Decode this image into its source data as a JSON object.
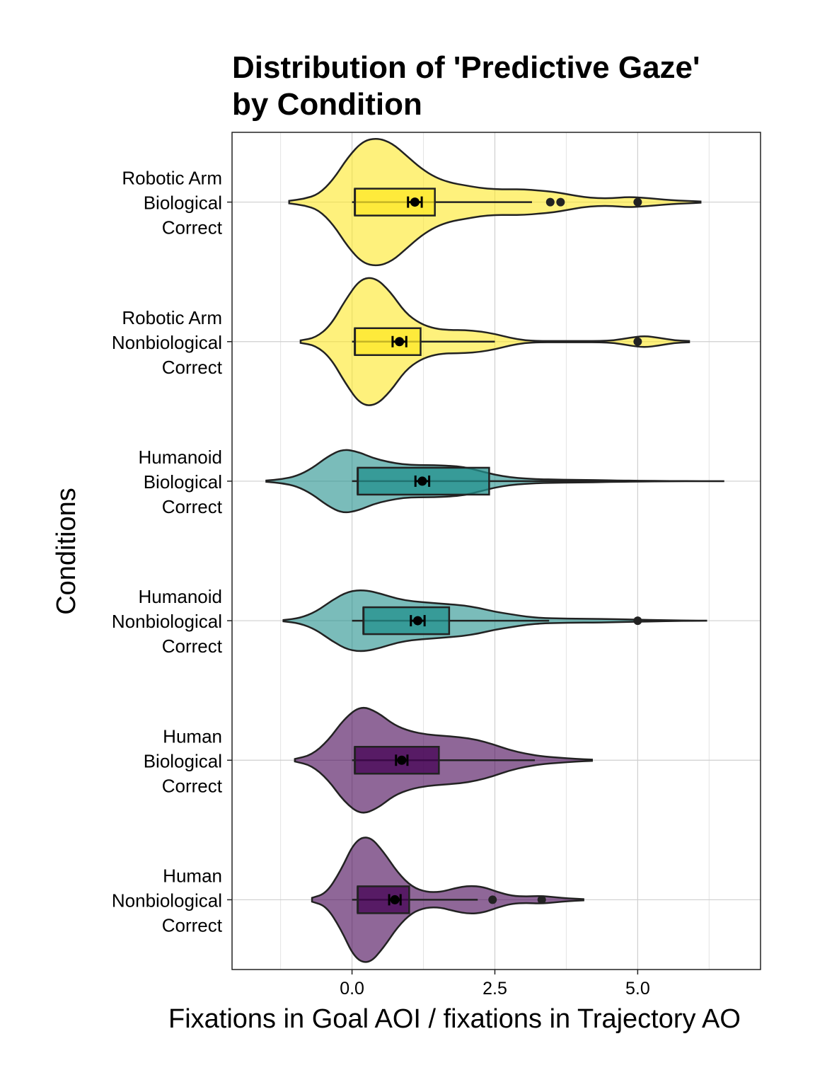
{
  "chart_data": {
    "type": "violin",
    "title_lines": [
      "Distribution of 'Predictive Gaze'",
      "by Condition"
    ],
    "xlabel": "Fixations in Goal AOI / fixations in Trajectory AO",
    "ylabel": "Conditions",
    "xlim": [
      -2.1,
      7.15
    ],
    "xticks": [
      0.0,
      2.5,
      5.0
    ],
    "xtick_labels": [
      "0.0",
      "2.5",
      "5.0"
    ],
    "grid": true,
    "colors": {
      "yellow": "#fde725",
      "teal": "#21908c",
      "purple": "#440154"
    },
    "groups": [
      {
        "label": [
          "Robotic Arm",
          "Biological",
          "Correct"
        ],
        "color": "#fde725",
        "min": 0.0,
        "q1": 0.05,
        "median": 0.05,
        "q3": 1.45,
        "max": 3.15,
        "mean": 1.1,
        "se": 0.12,
        "outliers": [
          3.47,
          3.65,
          5.0
        ],
        "violin_range": [
          -1.1,
          6.1
        ],
        "density": [
          0.02,
          0.05,
          0.12,
          0.35,
          0.7,
          0.95,
          1.0,
          0.92,
          0.72,
          0.52,
          0.38,
          0.3,
          0.26,
          0.22,
          0.2,
          0.2,
          0.2,
          0.18,
          0.16,
          0.12,
          0.08,
          0.06,
          0.06,
          0.08,
          0.07,
          0.05,
          0.03,
          0.02,
          0.01
        ]
      },
      {
        "label": [
          "Robotic Arm",
          "Nonbiological",
          "Correct"
        ],
        "color": "#fde725",
        "min": 0.0,
        "q1": 0.05,
        "median": 0.05,
        "q3": 1.2,
        "max": 2.5,
        "mean": 0.83,
        "se": 0.12,
        "outliers": [
          5.0
        ],
        "violin_range": [
          -0.9,
          5.9
        ],
        "density": [
          0.02,
          0.06,
          0.25,
          0.65,
          0.98,
          1.0,
          0.78,
          0.45,
          0.28,
          0.2,
          0.18,
          0.18,
          0.16,
          0.12,
          0.06,
          0.02,
          0.01,
          0.01,
          0.01,
          0.01,
          0.01,
          0.02,
          0.06,
          0.09,
          0.06,
          0.02,
          0.01
        ]
      },
      {
        "label": [
          "Humanoid",
          "Biological",
          "Correct"
        ],
        "color": "#21908c",
        "min": 0.0,
        "q1": 0.1,
        "median": 0.1,
        "q3": 2.4,
        "max": 4.95,
        "mean": 1.23,
        "se": 0.12,
        "outliers": [],
        "violin_range": [
          -1.5,
          6.5
        ],
        "density": [
          0.01,
          0.03,
          0.08,
          0.2,
          0.38,
          0.5,
          0.46,
          0.36,
          0.3,
          0.26,
          0.25,
          0.25,
          0.24,
          0.22,
          0.16,
          0.1,
          0.06,
          0.04,
          0.03,
          0.025,
          0.02,
          0.02,
          0.015,
          0.01,
          0.008,
          0.005,
          0.003,
          0.002,
          0.001,
          0.001,
          0.001
        ]
      },
      {
        "label": [
          "Humanoid",
          "Nonbiological",
          "Correct"
        ],
        "color": "#21908c",
        "min": 0.0,
        "q1": 0.2,
        "median": 0.2,
        "q3": 1.7,
        "max": 3.45,
        "mean": 1.15,
        "se": 0.12,
        "outliers": [
          5.0
        ],
        "violin_range": [
          -1.2,
          6.2
        ],
        "density": [
          0.01,
          0.04,
          0.14,
          0.32,
          0.46,
          0.48,
          0.42,
          0.34,
          0.3,
          0.28,
          0.26,
          0.24,
          0.2,
          0.14,
          0.1,
          0.06,
          0.04,
          0.035,
          0.03,
          0.03,
          0.025,
          0.02,
          0.015,
          0.01,
          0.005,
          0.002,
          0.001
        ]
      },
      {
        "label": [
          "Human",
          "Biological",
          "Correct"
        ],
        "color": "#440154",
        "min": 0.0,
        "q1": 0.05,
        "median": 0.05,
        "q3": 1.52,
        "max": 3.2,
        "mean": 0.87,
        "se": 0.1,
        "outliers": [],
        "violin_range": [
          -1.0,
          4.2
        ],
        "density": [
          0.02,
          0.08,
          0.3,
          0.65,
          0.85,
          0.75,
          0.55,
          0.45,
          0.4,
          0.38,
          0.36,
          0.32,
          0.25,
          0.16,
          0.1,
          0.06,
          0.04,
          0.02,
          0.01
        ]
      },
      {
        "label": [
          "Human",
          "Nonbiological",
          "Correct"
        ],
        "color": "#440154",
        "min": 0.0,
        "q1": 0.1,
        "median": 0.1,
        "q3": 1.0,
        "max": 2.2,
        "mean": 0.75,
        "se": 0.1,
        "outliers": [
          2.46,
          3.32
        ],
        "violin_range": [
          -0.7,
          4.05
        ],
        "density": [
          0.03,
          0.1,
          0.45,
          0.92,
          1.0,
          0.75,
          0.42,
          0.2,
          0.12,
          0.12,
          0.18,
          0.22,
          0.2,
          0.12,
          0.06,
          0.05,
          0.06,
          0.04,
          0.02,
          0.01
        ]
      }
    ]
  }
}
